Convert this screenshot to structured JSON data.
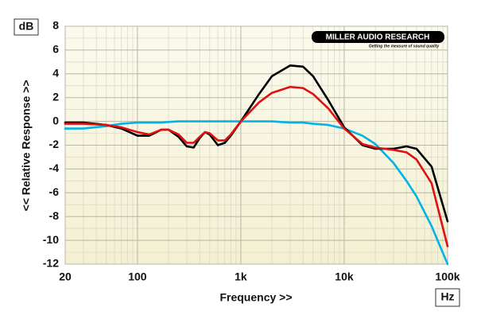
{
  "chart_data": {
    "type": "line",
    "y_unit": "dB",
    "x_unit": "Hz",
    "y_label": "<< Relative Response >>",
    "x_label": "Frequency >>",
    "brand": "MILLER AUDIO RESEARCH",
    "tagline": "Getting the measure of sound quality",
    "xscale": "log",
    "x": [
      20,
      30,
      50,
      70,
      100,
      130,
      170,
      200,
      250,
      300,
      350,
      400,
      450,
      500,
      600,
      700,
      800,
      1000,
      1500,
      2000,
      3000,
      4000,
      5000,
      7000,
      10000,
      15000,
      20000,
      30000,
      40000,
      50000,
      70000,
      100000
    ],
    "series": [
      {
        "color": "#00b4e6",
        "values": [
          -0.6,
          -0.6,
          -0.4,
          -0.2,
          -0.1,
          -0.1,
          -0.1,
          -0.05,
          0,
          0,
          0,
          0,
          0,
          0,
          0,
          0,
          0,
          0,
          0,
          0,
          -0.1,
          -0.1,
          -0.2,
          -0.3,
          -0.6,
          -1.2,
          -1.9,
          -3.5,
          -5.0,
          -6.3,
          -8.8,
          -12
        ]
      },
      {
        "color": "#000000",
        "values": [
          -0.1,
          -0.1,
          -0.3,
          -0.6,
          -1.2,
          -1.2,
          -0.7,
          -0.7,
          -1.3,
          -2.1,
          -2.2,
          -1.4,
          -0.9,
          -1.1,
          -2.0,
          -1.8,
          -1.2,
          0,
          2.3,
          3.8,
          4.7,
          4.6,
          3.8,
          1.8,
          -0.5,
          -2.0,
          -2.3,
          -2.3,
          -2.1,
          -2.3,
          -3.8,
          -8.4
        ]
      },
      {
        "color": "#e01010",
        "values": [
          -0.2,
          -0.2,
          -0.3,
          -0.5,
          -0.9,
          -1.1,
          -0.7,
          -0.7,
          -1.1,
          -1.8,
          -1.8,
          -1.3,
          -0.9,
          -1.0,
          -1.6,
          -1.6,
          -1.1,
          0,
          1.6,
          2.4,
          2.9,
          2.8,
          2.3,
          1.1,
          -0.6,
          -1.9,
          -2.2,
          -2.4,
          -2.6,
          -3.2,
          -5.2,
          -10.5
        ]
      }
    ],
    "xlim": [
      20,
      100000
    ],
    "xticks": [
      20,
      100,
      {
        "value": 1000,
        "label": "1k"
      },
      {
        "value": 10000,
        "label": "10k"
      },
      {
        "value": 100000,
        "label": "100k"
      }
    ],
    "ylim": [
      -12,
      8
    ],
    "yticks": [
      -12,
      -10,
      -8,
      -6,
      -4,
      -2,
      0,
      2,
      4,
      6,
      8
    ],
    "grid": true
  }
}
